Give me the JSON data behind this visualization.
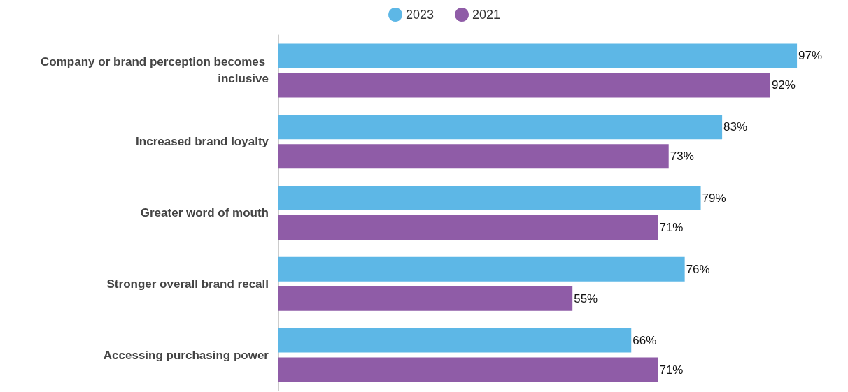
{
  "chart_data": {
    "type": "bar",
    "orientation": "horizontal",
    "categories": [
      "Company or brand perception becomes inclusive",
      "Increased brand loyalty",
      "Greater word of mouth",
      "Stronger overall brand recall",
      "Accessing purchasing power"
    ],
    "series": [
      {
        "name": "2023",
        "color": "#5db7e6",
        "values": [
          97,
          83,
          79,
          76,
          66
        ],
        "value_labels": [
          "97%",
          "83%",
          "79%",
          "76%",
          "66%"
        ]
      },
      {
        "name": "2021",
        "color": "#8f5ca7",
        "values": [
          92,
          73,
          71,
          55,
          71
        ],
        "value_labels": [
          "92%",
          "73%",
          "71%",
          "55%",
          "71%"
        ]
      }
    ],
    "tick_labels": "y",
    "legend": "top",
    "grid": false
  }
}
